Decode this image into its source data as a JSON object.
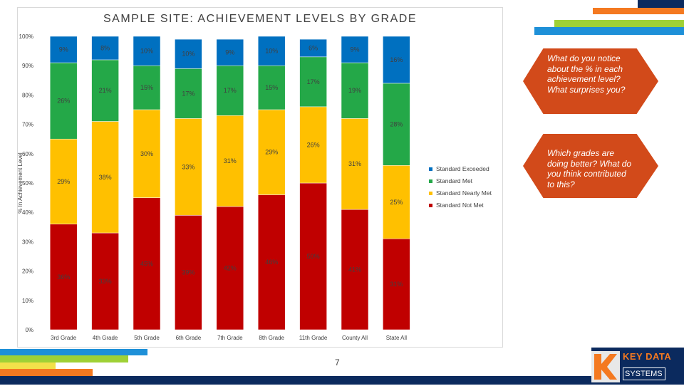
{
  "chart_data": {
    "type": "bar",
    "stacked": true,
    "title": "SAMPLE SITE:  ACHIEVEMENT LEVELS BY GRADE",
    "ylabel": "% In Achievement Level",
    "ylim": [
      0,
      100
    ],
    "yticks": [
      "0%",
      "10%",
      "20%",
      "30%",
      "40%",
      "50%",
      "60%",
      "70%",
      "80%",
      "90%",
      "100%"
    ],
    "categories": [
      "3rd Grade",
      "4th Grade",
      "5th Grade",
      "6th Grade",
      "7th Grade",
      "8th Grade",
      "11th Grade",
      "County All",
      "State All"
    ],
    "series": [
      {
        "name": "Standard Not Met",
        "color": "#c00000",
        "values": [
          36,
          33,
          45,
          39,
          42,
          46,
          50,
          41,
          31
        ],
        "labels": [
          "36%",
          "33%",
          "45%",
          "39%",
          "42%",
          "46%",
          "50%",
          "41%",
          "31%"
        ]
      },
      {
        "name": "Standard Nearly Met",
        "color": "#ffc000",
        "values": [
          29,
          38,
          30,
          33,
          31,
          29,
          26,
          31,
          25
        ],
        "labels": [
          "29%",
          "38%",
          "30%",
          "33%",
          "31%",
          "29%",
          "26%",
          "31%",
          "25%"
        ]
      },
      {
        "name": "Standard Met",
        "color": "#24a848",
        "values": [
          26,
          21,
          15,
          17,
          17,
          15,
          17,
          19,
          28
        ],
        "labels": [
          "26%",
          "21%",
          "15%",
          "17%",
          "17%",
          "15%",
          "17%",
          "19%",
          "28%"
        ]
      },
      {
        "name": "Standard Exceeded",
        "color": "#0070c0",
        "values": [
          9,
          8,
          10,
          10,
          9,
          10,
          6,
          9,
          16
        ],
        "labels": [
          "9%",
          "8%",
          "10%",
          "10%",
          "9%",
          "10%",
          "6%",
          "9%",
          "16%"
        ]
      }
    ],
    "legend_order": [
      "Standard Exceeded",
      "Standard Met",
      "Standard Nearly Met",
      "Standard Not Met"
    ],
    "legend_position": "right",
    "grid": false
  },
  "callouts": {
    "q1": "What do you notice about the % in each achievement level? What surprises you?",
    "q2": "Which grades are doing better? What do you think contributed to this?"
  },
  "page_number": "7",
  "logo": {
    "top": "KEY DATA",
    "bottom": "SYSTEMS"
  },
  "colors": {
    "orange": "#d24a1a",
    "accent_orange": "#f47920",
    "blue": "#1e90d8",
    "green": "#8cc63f",
    "navy": "#0b2a5e"
  }
}
